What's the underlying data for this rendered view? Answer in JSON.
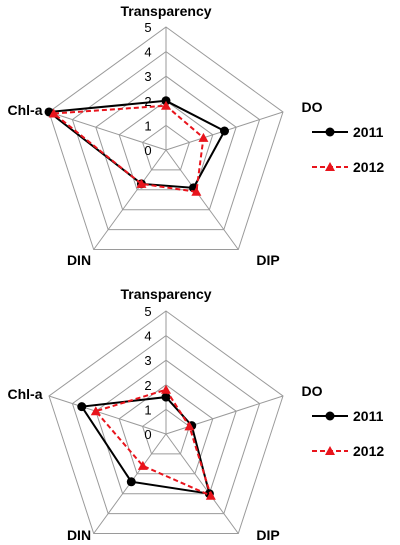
{
  "chart_data": [
    {
      "type": "radar",
      "axes": [
        "Transparency",
        "DO",
        "DIP",
        "DIN",
        "Chl-a"
      ],
      "ticks": [
        "0",
        "1",
        "2",
        "3",
        "4",
        "5"
      ],
      "range": [
        0,
        5
      ],
      "grid": true,
      "legend_position": "right",
      "series": [
        {
          "name": "2011",
          "values": [
            2.0,
            2.5,
            1.9,
            1.7,
            5.0
          ],
          "color": "#000000",
          "marker": "circle",
          "line": "solid"
        },
        {
          "name": "2012",
          "values": [
            1.8,
            1.6,
            2.1,
            1.7,
            4.8
          ],
          "color": "#e8141c",
          "marker": "triangle",
          "line": "dashed"
        }
      ]
    },
    {
      "type": "radar",
      "axes": [
        "Transparency",
        "DO",
        "DIP",
        "DIN",
        "Chl-a"
      ],
      "ticks": [
        "0",
        "1",
        "2",
        "3",
        "4",
        "5"
      ],
      "range": [
        0,
        5
      ],
      "grid": true,
      "legend_position": "right",
      "series": [
        {
          "name": "2011",
          "values": [
            1.5,
            1.1,
            3.0,
            2.4,
            3.6
          ],
          "color": "#000000",
          "marker": "circle",
          "line": "solid"
        },
        {
          "name": "2012",
          "values": [
            1.8,
            1.0,
            3.1,
            1.6,
            3.0
          ],
          "color": "#e8141c",
          "marker": "triangle",
          "line": "dashed"
        }
      ]
    }
  ]
}
